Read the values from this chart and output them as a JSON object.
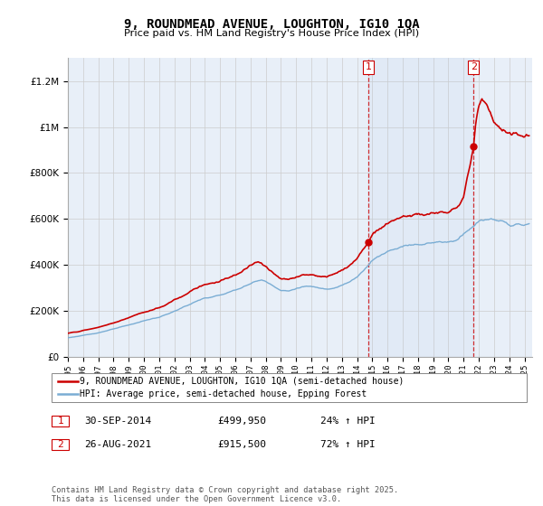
{
  "title": "9, ROUNDMEAD AVENUE, LOUGHTON, IG10 1QA",
  "subtitle": "Price paid vs. HM Land Registry's House Price Index (HPI)",
  "legend_line1": "9, ROUNDMEAD AVENUE, LOUGHTON, IG10 1QA (semi-detached house)",
  "legend_line2": "HPI: Average price, semi-detached house, Epping Forest",
  "sale1_date": "30-SEP-2014",
  "sale1_price": "£499,950",
  "sale1_hpi": "24% ↑ HPI",
  "sale1_year": 2014.75,
  "sale1_value": 499950,
  "sale2_date": "26-AUG-2021",
  "sale2_price": "£915,500",
  "sale2_hpi": "72% ↑ HPI",
  "sale2_year": 2021.65,
  "sale2_value": 915500,
  "price_color": "#cc0000",
  "hpi_color": "#7aadd4",
  "vline_color": "#cc0000",
  "background_color": "#e8eff8",
  "plot_bg": "#ffffff",
  "footer": "Contains HM Land Registry data © Crown copyright and database right 2025.\nThis data is licensed under the Open Government Licence v3.0.",
  "ylim": [
    0,
    1300000
  ],
  "xlim_start": 1995.0,
  "xlim_end": 2025.5,
  "yticks": [
    0,
    200000,
    400000,
    600000,
    800000,
    1000000,
    1200000
  ]
}
